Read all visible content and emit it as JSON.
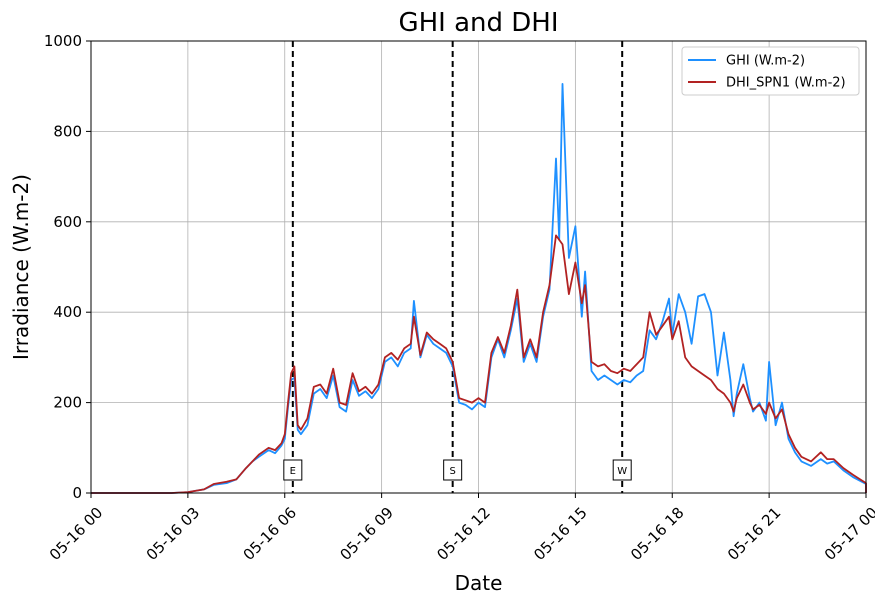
{
  "chart_data": {
    "type": "line",
    "title": "GHI and DHI",
    "xlabel": "Date",
    "ylabel": "Irradiance (W.m-2)",
    "xlim": [
      "05-16 00",
      "05-17 00"
    ],
    "ylim": [
      0,
      1000
    ],
    "x_tick_labels": [
      "05-16 00",
      "05-16 03",
      "05-16 06",
      "05-16 09",
      "05-16 12",
      "05-16 15",
      "05-16 18",
      "05-16 21",
      "05-17 00"
    ],
    "y_tick_labels": [
      "0",
      "200",
      "400",
      "600",
      "800",
      "1000"
    ],
    "grid": true,
    "legend_position": "top-right",
    "x_unit": "hours since 05-16 00:00",
    "series": [
      {
        "name": "GHI (W.m-2)",
        "color": "#1e90ff",
        "points": [
          [
            0.0,
            0
          ],
          [
            2.5,
            0
          ],
          [
            3.0,
            2
          ],
          [
            3.5,
            8
          ],
          [
            3.8,
            18
          ],
          [
            4.2,
            22
          ],
          [
            4.5,
            30
          ],
          [
            4.8,
            55
          ],
          [
            5.0,
            70
          ],
          [
            5.2,
            80
          ],
          [
            5.5,
            95
          ],
          [
            5.7,
            88
          ],
          [
            5.9,
            105
          ],
          [
            6.0,
            120
          ],
          [
            6.1,
            190
          ],
          [
            6.2,
            250
          ],
          [
            6.3,
            255
          ],
          [
            6.4,
            140
          ],
          [
            6.5,
            130
          ],
          [
            6.7,
            150
          ],
          [
            6.9,
            220
          ],
          [
            7.1,
            230
          ],
          [
            7.3,
            210
          ],
          [
            7.5,
            260
          ],
          [
            7.7,
            190
          ],
          [
            7.9,
            180
          ],
          [
            8.1,
            250
          ],
          [
            8.3,
            215
          ],
          [
            8.5,
            225
          ],
          [
            8.7,
            210
          ],
          [
            8.9,
            230
          ],
          [
            9.1,
            290
          ],
          [
            9.3,
            300
          ],
          [
            9.5,
            280
          ],
          [
            9.7,
            310
          ],
          [
            9.9,
            320
          ],
          [
            10.0,
            425
          ],
          [
            10.2,
            300
          ],
          [
            10.4,
            350
          ],
          [
            10.6,
            330
          ],
          [
            10.8,
            320
          ],
          [
            11.0,
            310
          ],
          [
            11.2,
            280
          ],
          [
            11.4,
            200
          ],
          [
            11.6,
            195
          ],
          [
            11.8,
            185
          ],
          [
            12.0,
            200
          ],
          [
            12.2,
            190
          ],
          [
            12.4,
            300
          ],
          [
            12.6,
            340
          ],
          [
            12.8,
            300
          ],
          [
            13.0,
            360
          ],
          [
            13.2,
            430
          ],
          [
            13.4,
            290
          ],
          [
            13.6,
            330
          ],
          [
            13.8,
            290
          ],
          [
            14.0,
            390
          ],
          [
            14.2,
            450
          ],
          [
            14.4,
            740
          ],
          [
            14.5,
            560
          ],
          [
            14.6,
            905
          ],
          [
            14.8,
            520
          ],
          [
            15.0,
            590
          ],
          [
            15.2,
            390
          ],
          [
            15.3,
            490
          ],
          [
            15.5,
            270
          ],
          [
            15.7,
            250
          ],
          [
            15.9,
            260
          ],
          [
            16.1,
            250
          ],
          [
            16.3,
            240
          ],
          [
            16.5,
            250
          ],
          [
            16.7,
            245
          ],
          [
            16.9,
            260
          ],
          [
            17.1,
            270
          ],
          [
            17.3,
            360
          ],
          [
            17.5,
            340
          ],
          [
            17.7,
            380
          ],
          [
            17.9,
            430
          ],
          [
            18.0,
            350
          ],
          [
            18.2,
            440
          ],
          [
            18.4,
            400
          ],
          [
            18.6,
            330
          ],
          [
            18.8,
            435
          ],
          [
            19.0,
            440
          ],
          [
            19.2,
            400
          ],
          [
            19.4,
            260
          ],
          [
            19.6,
            355
          ],
          [
            19.8,
            250
          ],
          [
            19.9,
            170
          ],
          [
            20.0,
            220
          ],
          [
            20.2,
            285
          ],
          [
            20.4,
            210
          ],
          [
            20.5,
            180
          ],
          [
            20.7,
            200
          ],
          [
            20.9,
            160
          ],
          [
            21.0,
            290
          ],
          [
            21.2,
            150
          ],
          [
            21.4,
            200
          ],
          [
            21.6,
            120
          ],
          [
            21.8,
            90
          ],
          [
            22.0,
            70
          ],
          [
            22.3,
            60
          ],
          [
            22.6,
            75
          ],
          [
            22.8,
            65
          ],
          [
            23.0,
            70
          ],
          [
            23.3,
            50
          ],
          [
            23.6,
            35
          ],
          [
            24.0,
            20
          ],
          [
            24.5,
            10
          ],
          [
            25.0,
            3
          ],
          [
            26.0,
            0
          ],
          [
            36.0,
            0
          ]
        ]
      },
      {
        "name": "DHI_SPN1 (W.m-2)",
        "color": "#b22222",
        "points": [
          [
            0.0,
            0
          ],
          [
            2.5,
            0
          ],
          [
            3.0,
            2
          ],
          [
            3.5,
            8
          ],
          [
            3.8,
            20
          ],
          [
            4.2,
            25
          ],
          [
            4.5,
            30
          ],
          [
            4.8,
            55
          ],
          [
            5.0,
            70
          ],
          [
            5.2,
            85
          ],
          [
            5.5,
            100
          ],
          [
            5.7,
            95
          ],
          [
            5.9,
            110
          ],
          [
            6.0,
            130
          ],
          [
            6.1,
            200
          ],
          [
            6.2,
            265
          ],
          [
            6.3,
            280
          ],
          [
            6.4,
            150
          ],
          [
            6.5,
            140
          ],
          [
            6.7,
            165
          ],
          [
            6.9,
            235
          ],
          [
            7.1,
            240
          ],
          [
            7.3,
            220
          ],
          [
            7.5,
            275
          ],
          [
            7.7,
            200
          ],
          [
            7.9,
            195
          ],
          [
            8.1,
            265
          ],
          [
            8.3,
            225
          ],
          [
            8.5,
            235
          ],
          [
            8.7,
            220
          ],
          [
            8.9,
            240
          ],
          [
            9.1,
            300
          ],
          [
            9.3,
            310
          ],
          [
            9.5,
            295
          ],
          [
            9.7,
            320
          ],
          [
            9.9,
            330
          ],
          [
            10.0,
            390
          ],
          [
            10.2,
            305
          ],
          [
            10.4,
            355
          ],
          [
            10.6,
            340
          ],
          [
            10.8,
            330
          ],
          [
            11.0,
            320
          ],
          [
            11.2,
            290
          ],
          [
            11.4,
            210
          ],
          [
            11.6,
            205
          ],
          [
            11.8,
            200
          ],
          [
            12.0,
            210
          ],
          [
            12.2,
            200
          ],
          [
            12.4,
            310
          ],
          [
            12.6,
            345
          ],
          [
            12.8,
            310
          ],
          [
            13.0,
            370
          ],
          [
            13.2,
            450
          ],
          [
            13.4,
            300
          ],
          [
            13.6,
            340
          ],
          [
            13.8,
            300
          ],
          [
            14.0,
            400
          ],
          [
            14.2,
            460
          ],
          [
            14.4,
            570
          ],
          [
            14.6,
            550
          ],
          [
            14.8,
            440
          ],
          [
            15.0,
            510
          ],
          [
            15.2,
            420
          ],
          [
            15.3,
            460
          ],
          [
            15.5,
            290
          ],
          [
            15.7,
            280
          ],
          [
            15.9,
            285
          ],
          [
            16.1,
            270
          ],
          [
            16.3,
            265
          ],
          [
            16.5,
            275
          ],
          [
            16.7,
            270
          ],
          [
            16.9,
            285
          ],
          [
            17.1,
            300
          ],
          [
            17.3,
            400
          ],
          [
            17.5,
            350
          ],
          [
            17.7,
            370
          ],
          [
            17.9,
            390
          ],
          [
            18.0,
            340
          ],
          [
            18.2,
            380
          ],
          [
            18.4,
            300
          ],
          [
            18.6,
            280
          ],
          [
            18.8,
            270
          ],
          [
            19.0,
            260
          ],
          [
            19.2,
            250
          ],
          [
            19.4,
            230
          ],
          [
            19.6,
            220
          ],
          [
            19.8,
            200
          ],
          [
            19.9,
            180
          ],
          [
            20.0,
            210
          ],
          [
            20.2,
            240
          ],
          [
            20.4,
            200
          ],
          [
            20.5,
            185
          ],
          [
            20.7,
            195
          ],
          [
            20.9,
            175
          ],
          [
            21.0,
            200
          ],
          [
            21.2,
            165
          ],
          [
            21.4,
            185
          ],
          [
            21.6,
            130
          ],
          [
            21.8,
            100
          ],
          [
            22.0,
            80
          ],
          [
            22.3,
            70
          ],
          [
            22.6,
            90
          ],
          [
            22.8,
            75
          ],
          [
            23.0,
            75
          ],
          [
            23.3,
            55
          ],
          [
            23.6,
            40
          ],
          [
            24.0,
            22
          ],
          [
            24.5,
            12
          ],
          [
            25.0,
            4
          ],
          [
            26.0,
            0
          ],
          [
            36.0,
            0
          ]
        ]
      }
    ],
    "vertical_markers": [
      {
        "label": "E",
        "x": 6.25
      },
      {
        "label": "S",
        "x": 11.2
      },
      {
        "label": "W",
        "x": 16.45
      }
    ]
  }
}
